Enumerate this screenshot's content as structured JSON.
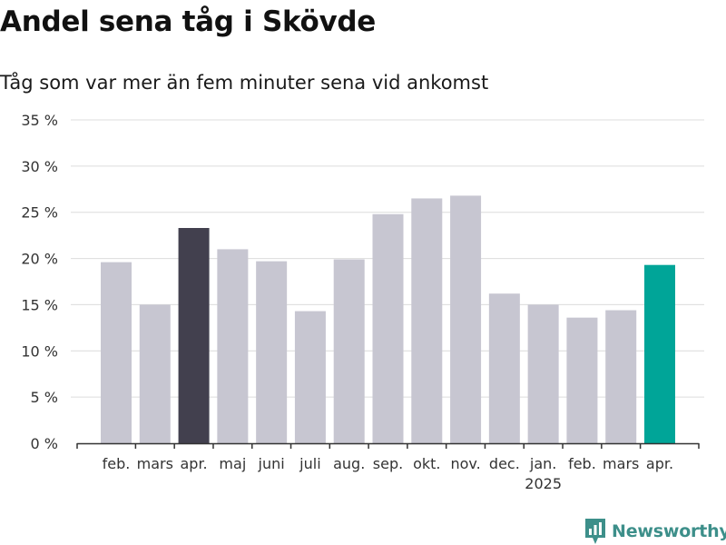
{
  "title": "Andel sena tåg i Skövde",
  "subtitle": "Tåg som var mer än fem minuter sena vid ankomst",
  "brand": {
    "name": "Newsworthy",
    "icon": "bar-chart-logo-icon",
    "color": "#3d8f8a"
  },
  "chart_data": {
    "type": "bar",
    "categories": [
      "feb.",
      "mars",
      "apr.",
      "maj",
      "juni",
      "juli",
      "aug.",
      "sep.",
      "okt.",
      "nov.",
      "dec.",
      "jan.",
      "feb.",
      "mars",
      "apr."
    ],
    "year_labels": [
      {
        "index": 11,
        "label": "2025"
      }
    ],
    "values": [
      19.6,
      15.0,
      23.3,
      21.0,
      19.7,
      14.3,
      19.9,
      24.8,
      26.5,
      26.8,
      16.2,
      15.0,
      13.6,
      14.4,
      19.3
    ],
    "highlight": {
      "2": "#42404e",
      "14": "#00a598"
    },
    "default_color": "#c7c6d1",
    "yticks": [
      "0 %",
      "5 %",
      "10 %",
      "15 %",
      "20 %",
      "25 %",
      "30 %",
      "35 %"
    ],
    "ylim": [
      0,
      35
    ],
    "grid": true,
    "xlabel": "",
    "ylabel": ""
  }
}
